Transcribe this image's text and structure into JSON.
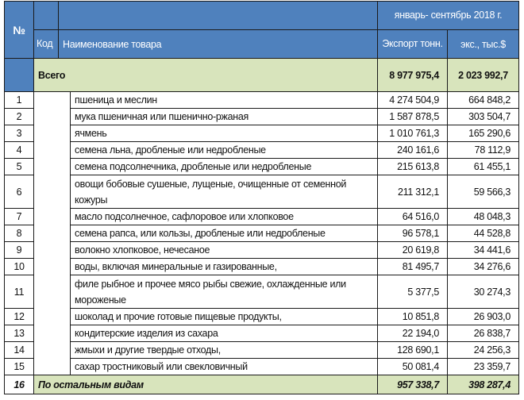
{
  "header": {
    "no": "№",
    "code": "Код",
    "name": "Наименование товара",
    "period": "январь- сентябрь 2018 г.",
    "export_tons": "Экспорт тонн.",
    "export_value": "экс., тыс.$"
  },
  "total": {
    "label": "Всего",
    "tons": "8 977 975,4",
    "value": "2 023 992,7"
  },
  "rows": [
    {
      "no": "1",
      "name": "пшеница и меслин",
      "tons": "4 274 504,9",
      "value": "664 848,2"
    },
    {
      "no": "2",
      "name": "мука пшеничная или пшенично-ржаная",
      "tons": "1 587 878,5",
      "value": "303 504,7"
    },
    {
      "no": "3",
      "name": "ячмень",
      "tons": "1 010 761,3",
      "value": "165 290,6"
    },
    {
      "no": "4",
      "name": "семена льна, дробленые или недробленые",
      "tons": "240 161,6",
      "value": "78 112,9"
    },
    {
      "no": "5",
      "name": "семена подсолнечника, дробленые или недробленые",
      "tons": "215 613,8",
      "value": "61 455,1"
    },
    {
      "no": "6",
      "name": "овощи бобовые сушеные, лущеные, очищенные от семенной кожуры",
      "tons": "211 312,1",
      "value": "59 566,3"
    },
    {
      "no": "7",
      "name": "масло подсолнечное, сафлоровое или хлопковое",
      "tons": "64 516,0",
      "value": "48 048,3"
    },
    {
      "no": "8",
      "name": "семена рапса, или кользы, дробленые или недробленые",
      "tons": "96 578,1",
      "value": "44 528,8"
    },
    {
      "no": "9",
      "name": "волокно хлопковое, нечесаное",
      "tons": "20 619,8",
      "value": "34 441,6"
    },
    {
      "no": "10",
      "name": "воды, включая минеральные и газированные,",
      "tons": "81 495,7",
      "value": "34 276,6"
    },
    {
      "no": "11",
      "name": "филе рыбное и прочее мясо рыбы   свежие, охлажденные или мороженые",
      "tons": "5 377,5",
      "value": "30 274,3"
    },
    {
      "no": "12",
      "name": "шоколад и прочие готовые пищевые продукты,",
      "tons": "10 851,8",
      "value": "26 903,0"
    },
    {
      "no": "13",
      "name": "кондитерские изделия из сахара",
      "tons": "22 194,0",
      "value": "26 838,7"
    },
    {
      "no": "14",
      "name": "жмыхи и другие твердые отходы,",
      "tons": "128 690,1",
      "value": "24 256,3"
    },
    {
      "no": "15",
      "name": "сахар тростниковый или свекловичный",
      "tons": "50 081,4",
      "value": "23 359,7"
    }
  ],
  "other": {
    "no": "16",
    "label": "По остальным видам",
    "tons": "957 338,7",
    "value": "398 287,4"
  },
  "colors": {
    "header": "#4f81bd",
    "total": "#d8e4bc"
  }
}
